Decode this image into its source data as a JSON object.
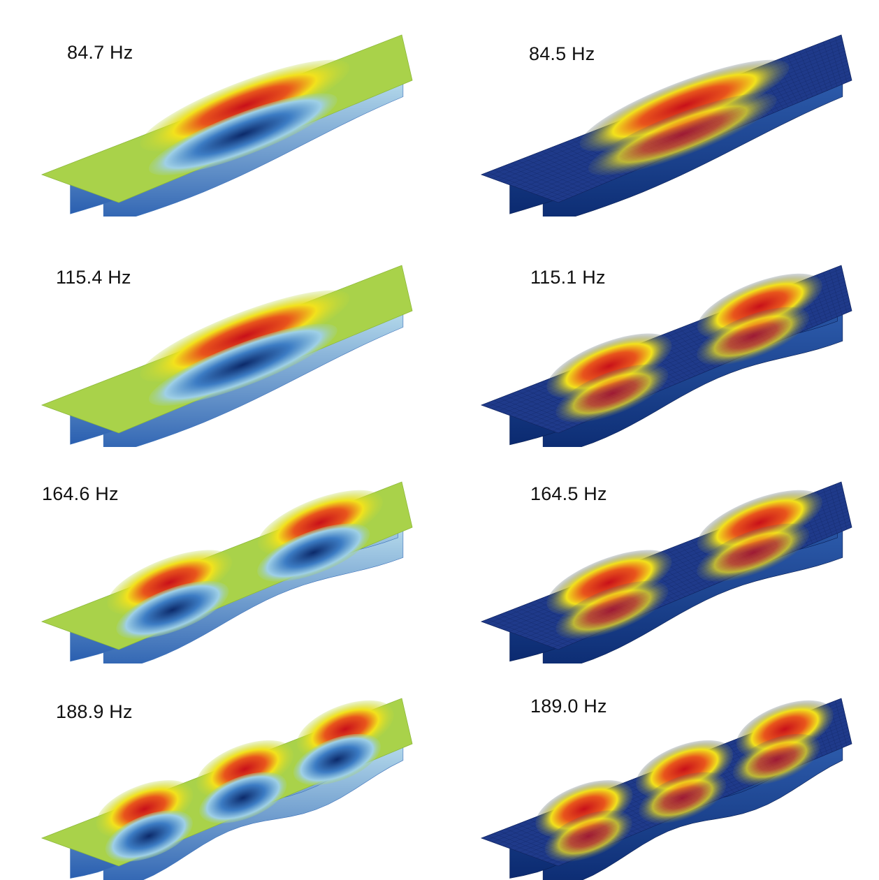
{
  "panels": {
    "left": [
      {
        "label": "84.7 Hz",
        "bumps": 1
      },
      {
        "label": "115.4 Hz",
        "bumps": 1
      },
      {
        "label": "164.6 Hz",
        "bumps": 2
      },
      {
        "label": "188.9 Hz",
        "bumps": 3
      }
    ],
    "right": [
      {
        "label": "84.5 Hz",
        "bumps": 1
      },
      {
        "label": "115.1 Hz",
        "bumps": 2
      },
      {
        "label": "164.5 Hz",
        "bumps": 2
      },
      {
        "label": "189.0 Hz",
        "bumps": 3
      }
    ]
  },
  "colors": {
    "left_plate": "#a9d24a",
    "right_plate": "#1f3a8a",
    "peak": "#c8101a",
    "trough": "#0c2a6a",
    "mid": "#f2e21c",
    "web": "#4a90d0"
  },
  "style": {
    "left": "smooth contour shading",
    "right": "mesh with contour shading"
  }
}
